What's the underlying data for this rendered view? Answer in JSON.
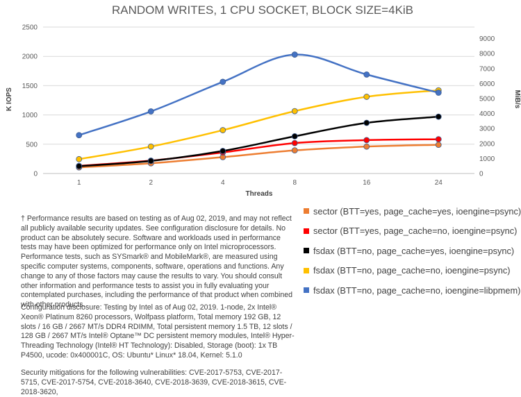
{
  "chart_data": {
    "type": "line",
    "title": "RANDOM WRITES, 1 CPU SOCKET, BLOCK SIZE=4KiB",
    "xlabel": "Threads",
    "ylabel": "K IOPS",
    "y2label": "MiB/s",
    "categories": [
      "1",
      "2",
      "4",
      "8",
      "16",
      "24"
    ],
    "ylim": [
      0,
      2500
    ],
    "yticks": [
      0,
      500,
      1000,
      1500,
      2000,
      2500
    ],
    "y2lim": [
      0,
      9766
    ],
    "y2ticks": [
      0,
      1000,
      2000,
      3000,
      4000,
      5000,
      6000,
      7000,
      8000,
      9000
    ],
    "grid": true,
    "legend_position": "bottom-right",
    "series": [
      {
        "name": "sector (BTT=yes, page_cache=yes, ioengine=psync)",
        "color": "#ED7D31",
        "values": [
          105,
          175,
          280,
          395,
          460,
          490
        ]
      },
      {
        "name": "sector (BTT=yes, page_cache=no, ioengine=psync)",
        "color": "#FF0000",
        "values": [
          130,
          220,
          360,
          520,
          570,
          585
        ]
      },
      {
        "name": "fsdax (BTT=no, page_cache=yes, ioengine=psync)",
        "color": "#000000",
        "values": [
          125,
          215,
          385,
          635,
          865,
          970
        ]
      },
      {
        "name": "fsdax (BTT=no, page_cache=no, ioengine=psync)",
        "color": "#FFC000",
        "values": [
          245,
          460,
          740,
          1065,
          1310,
          1420
        ]
      },
      {
        "name": "fsdax (BTT=no, page_cache=no, ioengine=libpmem)",
        "color": "#4472C4",
        "values": [
          655,
          1060,
          1565,
          2030,
          1690,
          1380
        ]
      }
    ]
  },
  "notes": {
    "disclaimer": "† Performance results are based on testing as of Aug 02, 2019, and may not reflect all publicly available security updates. See configuration disclosure for details. No product can be absolutely secure. Software and workloads used in performance tests may have been optimized for performance only on Intel microprocessors. Performance tests, such as SYSmark® and MobileMark®, are measured using specific computer systems, components, software, operations and functions. Any change to any of those factors may cause the results to vary. You should consult other information and performance tests to assist you in fully evaluating your contemplated purchases, including the performance of that product when combined with other products.",
    "configuration": "Configuration disclosure: Testing by Intel as of Aug 02, 2019. 1-node, 2x Intel® Xeon® Platinum 8260 processors, Wolfpass platform, Total memory 192 GB, 12 slots / 16 GB / 2667 MT/s DDR4 RDIMM, Total persistent memory 1.5 TB, 12 slots / 128 GB / 2667 MT/s Intel® Optane™ DC persistent memory modules, Intel® Hyper-Threading Technology (Intel® HT Technology): Disabled, Storage (boot): 1x TB P4500, ucode: 0x400001C, OS: Ubuntu* Linux* 18.04, Kernel: 5.1.0",
    "security": "Security mitigations for the following vulnerabilities: CVE-2017-5753, CVE-2017-5715, CVE-2017-5754, CVE-2018-3640, CVE-2018-3639, CVE-2018-3615, CVE-2018-3620,"
  }
}
